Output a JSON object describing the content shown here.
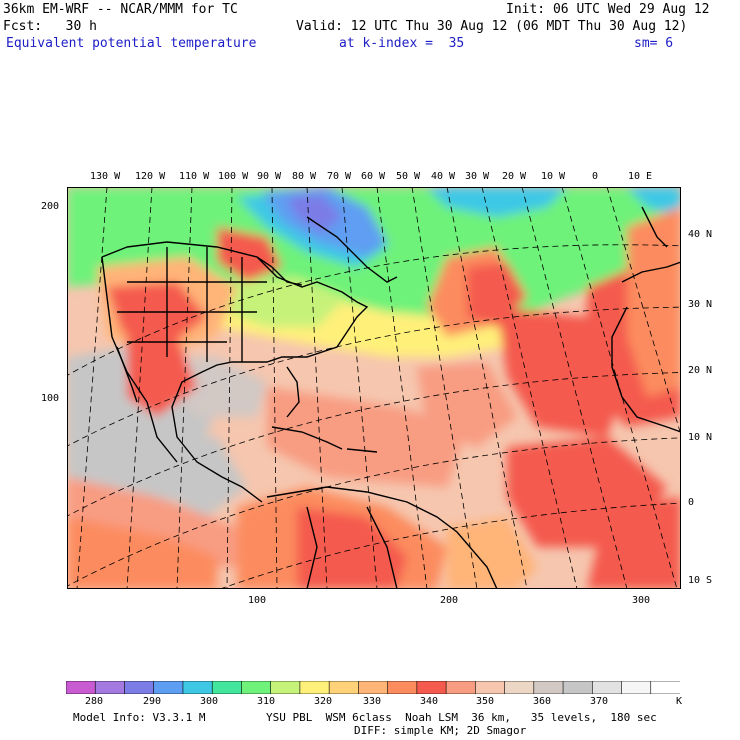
{
  "header": {
    "model": "36km EM-WRF -- NCAR/MMM for TC",
    "init": "Init: 06 UTC Wed 29 Aug 12",
    "fcst": "Fcst:   30 h",
    "valid": "Valid: 12 UTC Thu 30 Aug 12 (06 MDT Thu 30 Aug 12)",
    "field": "Equivalent potential temperature",
    "level": "at k-index =  35",
    "smooth": "sm= 6"
  },
  "map": {
    "top_lon_labels": [
      "130 W",
      "120 W",
      "110 W",
      "100 W",
      "90 W",
      "80 W",
      "70 W",
      "60 W",
      "50 W",
      "40 W",
      "30 W",
      "20 W",
      "10 W",
      "0",
      "10 E"
    ],
    "right_lat_labels": [
      "40 N",
      "30 N",
      "20 N",
      "10 N",
      "0",
      "10 S"
    ],
    "left_grid_labels": [
      "200",
      "100"
    ],
    "bottom_grid_labels": [
      "100",
      "200",
      "300"
    ]
  },
  "colorbar": {
    "colors": [
      "#c85ad2",
      "#a47ae0",
      "#7c7ce6",
      "#5e9ef2",
      "#3ec8e6",
      "#44e69e",
      "#6ef27a",
      "#c6f27a",
      "#fff07a",
      "#ffd27a",
      "#ffb478",
      "#fc8c5e",
      "#f45a4e",
      "#f89c82",
      "#f6c6ae",
      "#ecd6c6",
      "#d2c8c4",
      "#c6c6c6",
      "#e2e2e2",
      "#f6f6f6",
      "#ffffff"
    ],
    "labels": [
      "280",
      "290",
      "300",
      "310",
      "320",
      "330",
      "340",
      "350",
      "360",
      "370",
      "K"
    ]
  },
  "footer": {
    "model_info": "Model Info: V3.3.1 M",
    "physics": "YSU PBL  WSM 6class  Noah LSM  36 km,   35 levels,  180 sec",
    "diffusion": "DIFF: simple KM; 2D Smagor"
  }
}
